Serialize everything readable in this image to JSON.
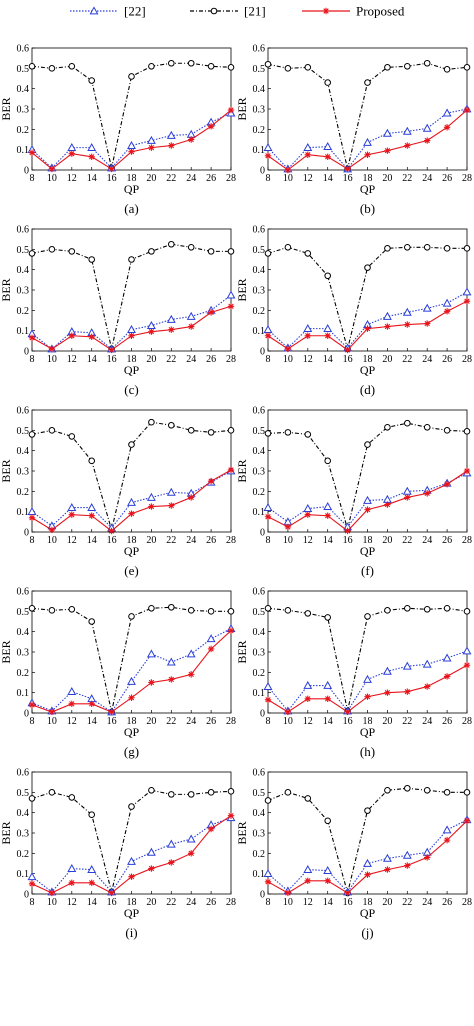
{
  "legend": {
    "items": [
      {
        "label": "[22]",
        "color": "#2b3fd6",
        "marker": "triangle-open",
        "line": "dotted"
      },
      {
        "label": "[21]",
        "color": "#000000",
        "marker": "circle-open",
        "line": "dashdot"
      },
      {
        "label": "Proposed",
        "color": "#e8141c",
        "marker": "asterisk",
        "line": "solid"
      }
    ]
  },
  "chart_data": [
    {
      "type": "line",
      "caption": "(a)",
      "xlabel": "QP",
      "ylabel": "BER",
      "x": [
        8,
        10,
        12,
        14,
        16,
        18,
        20,
        22,
        24,
        26,
        28
      ],
      "ylim": [
        0,
        0.6
      ],
      "yticks": [
        "0",
        "0.1",
        "0.2",
        "0.3",
        "0.4",
        "0.5",
        "0.6"
      ],
      "xticks": [
        "8",
        "10",
        "12",
        "14",
        "16",
        "18",
        "20",
        "22",
        "24",
        "26",
        "28"
      ],
      "series": [
        {
          "name": "[22]",
          "values": [
            0.1,
            0.01,
            0.11,
            0.11,
            0.01,
            0.12,
            0.145,
            0.17,
            0.175,
            0.235,
            0.28
          ]
        },
        {
          "name": "[21]",
          "values": [
            0.51,
            0.5,
            0.51,
            0.44,
            0.01,
            0.46,
            0.51,
            0.525,
            0.525,
            0.51,
            0.505
          ]
        },
        {
          "name": "Proposed",
          "values": [
            0.085,
            0.005,
            0.08,
            0.065,
            0.005,
            0.09,
            0.11,
            0.12,
            0.15,
            0.215,
            0.295
          ]
        }
      ]
    },
    {
      "type": "line",
      "caption": "(b)",
      "xlabel": "QP",
      "ylabel": "BER",
      "x": [
        8,
        10,
        12,
        14,
        16,
        18,
        20,
        22,
        24,
        26,
        28
      ],
      "ylim": [
        0,
        0.6
      ],
      "yticks": [
        "0",
        "0.1",
        "0.2",
        "0.3",
        "0.4",
        "0.5",
        "0.6"
      ],
      "xticks": [
        "8",
        "10",
        "12",
        "14",
        "16",
        "18",
        "20",
        "22",
        "24",
        "26",
        "28"
      ],
      "series": [
        {
          "name": "[22]",
          "values": [
            0.11,
            0.005,
            0.11,
            0.115,
            0.005,
            0.135,
            0.18,
            0.19,
            0.205,
            0.28,
            0.3
          ]
        },
        {
          "name": "[21]",
          "values": [
            0.52,
            0.5,
            0.505,
            0.43,
            0.005,
            0.43,
            0.505,
            0.51,
            0.525,
            0.495,
            0.505
          ]
        },
        {
          "name": "Proposed",
          "values": [
            0.07,
            0.0,
            0.075,
            0.065,
            0.005,
            0.075,
            0.095,
            0.12,
            0.145,
            0.21,
            0.295
          ]
        }
      ]
    },
    {
      "type": "line",
      "caption": "(c)",
      "xlabel": "QP",
      "ylabel": "BER",
      "x": [
        8,
        10,
        12,
        14,
        16,
        18,
        20,
        22,
        24,
        26,
        28
      ],
      "ylim": [
        0,
        0.6
      ],
      "yticks": [
        "0",
        "0.1",
        "0.2",
        "0.3",
        "0.4",
        "0.5",
        "0.6"
      ],
      "xticks": [
        "8",
        "10",
        "12",
        "14",
        "16",
        "18",
        "20",
        "22",
        "24",
        "26",
        "28"
      ],
      "series": [
        {
          "name": "[22]",
          "values": [
            0.085,
            0.01,
            0.095,
            0.09,
            0.01,
            0.105,
            0.125,
            0.155,
            0.17,
            0.2,
            0.275
          ]
        },
        {
          "name": "[21]",
          "values": [
            0.48,
            0.5,
            0.49,
            0.45,
            0.01,
            0.45,
            0.49,
            0.525,
            0.51,
            0.49,
            0.49
          ]
        },
        {
          "name": "Proposed",
          "values": [
            0.065,
            0.01,
            0.075,
            0.07,
            0.005,
            0.075,
            0.095,
            0.105,
            0.12,
            0.19,
            0.22
          ]
        }
      ]
    },
    {
      "type": "line",
      "caption": "(d)",
      "xlabel": "QP",
      "ylabel": "BER",
      "x": [
        8,
        10,
        12,
        14,
        16,
        18,
        20,
        22,
        24,
        26,
        28
      ],
      "ylim": [
        0,
        0.6
      ],
      "yticks": [
        "0",
        "0.1",
        "0.2",
        "0.3",
        "0.4",
        "0.5",
        "0.6"
      ],
      "xticks": [
        "8",
        "10",
        "12",
        "14",
        "16",
        "18",
        "20",
        "22",
        "24",
        "26",
        "28"
      ],
      "series": [
        {
          "name": "[22]",
          "values": [
            0.105,
            0.015,
            0.11,
            0.11,
            0.015,
            0.13,
            0.17,
            0.19,
            0.21,
            0.235,
            0.29
          ]
        },
        {
          "name": "[21]",
          "values": [
            0.48,
            0.51,
            0.48,
            0.37,
            0.01,
            0.41,
            0.505,
            0.51,
            0.51,
            0.505,
            0.505
          ]
        },
        {
          "name": "Proposed",
          "values": [
            0.075,
            0.01,
            0.075,
            0.075,
            0.005,
            0.11,
            0.12,
            0.13,
            0.135,
            0.195,
            0.245
          ]
        }
      ]
    },
    {
      "type": "line",
      "caption": "(e)",
      "xlabel": "QP",
      "ylabel": "BER",
      "x": [
        8,
        10,
        12,
        14,
        16,
        18,
        20,
        22,
        24,
        26,
        28
      ],
      "ylim": [
        0,
        0.6
      ],
      "yticks": [
        "0",
        "0.1",
        "0.2",
        "0.3",
        "0.4",
        "0.5",
        "0.6"
      ],
      "xticks": [
        "8",
        "10",
        "12",
        "14",
        "16",
        "18",
        "20",
        "22",
        "24",
        "26",
        "28"
      ],
      "series": [
        {
          "name": "[22]",
          "values": [
            0.1,
            0.03,
            0.12,
            0.12,
            0.02,
            0.145,
            0.17,
            0.195,
            0.19,
            0.245,
            0.3
          ]
        },
        {
          "name": "[21]",
          "values": [
            0.48,
            0.5,
            0.47,
            0.35,
            0.01,
            0.43,
            0.54,
            0.525,
            0.5,
            0.49,
            0.5
          ]
        },
        {
          "name": "Proposed",
          "values": [
            0.07,
            0.01,
            0.085,
            0.08,
            0.005,
            0.09,
            0.125,
            0.13,
            0.17,
            0.25,
            0.305
          ]
        }
      ]
    },
    {
      "type": "line",
      "caption": "(f)",
      "xlabel": "QP",
      "ylabel": "BER",
      "x": [
        8,
        10,
        12,
        14,
        16,
        18,
        20,
        22,
        24,
        26,
        28
      ],
      "ylim": [
        0,
        0.6
      ],
      "yticks": [
        "0",
        "0.1",
        "0.2",
        "0.3",
        "0.4",
        "0.5",
        "0.6"
      ],
      "xticks": [
        "8",
        "10",
        "12",
        "14",
        "16",
        "18",
        "20",
        "22",
        "24",
        "26",
        "28"
      ],
      "series": [
        {
          "name": "[22]",
          "values": [
            0.12,
            0.05,
            0.115,
            0.125,
            0.025,
            0.155,
            0.16,
            0.2,
            0.205,
            0.24,
            0.29
          ]
        },
        {
          "name": "[21]",
          "values": [
            0.485,
            0.49,
            0.48,
            0.35,
            0.015,
            0.43,
            0.515,
            0.535,
            0.515,
            0.5,
            0.495
          ]
        },
        {
          "name": "Proposed",
          "values": [
            0.075,
            0.025,
            0.085,
            0.08,
            0.005,
            0.11,
            0.135,
            0.17,
            0.19,
            0.235,
            0.3
          ]
        }
      ]
    },
    {
      "type": "line",
      "caption": "(g)",
      "xlabel": "QP",
      "ylabel": "BER",
      "x": [
        8,
        10,
        12,
        14,
        16,
        18,
        20,
        22,
        24,
        26,
        28
      ],
      "ylim": [
        0,
        0.6
      ],
      "yticks": [
        "0",
        "0.1",
        "0.2",
        "0.3",
        "0.4",
        "0.5",
        "0.6"
      ],
      "xticks": [
        "8",
        "10",
        "12",
        "14",
        "16",
        "18",
        "20",
        "22",
        "24",
        "26",
        "28"
      ],
      "series": [
        {
          "name": "[22]",
          "values": [
            0.05,
            0.01,
            0.105,
            0.07,
            0.005,
            0.155,
            0.29,
            0.25,
            0.29,
            0.365,
            0.415
          ]
        },
        {
          "name": "[21]",
          "values": [
            0.515,
            0.505,
            0.51,
            0.45,
            0.005,
            0.475,
            0.515,
            0.52,
            0.505,
            0.5,
            0.5
          ]
        },
        {
          "name": "Proposed",
          "values": [
            0.04,
            0.005,
            0.045,
            0.045,
            0.005,
            0.075,
            0.15,
            0.165,
            0.19,
            0.315,
            0.405
          ]
        }
      ]
    },
    {
      "type": "line",
      "caption": "(h)",
      "xlabel": "QP",
      "ylabel": "BER",
      "x": [
        8,
        10,
        12,
        14,
        16,
        18,
        20,
        22,
        24,
        26,
        28
      ],
      "ylim": [
        0,
        0.6
      ],
      "yticks": [
        "0",
        "0.1",
        "0.2",
        "0.3",
        "0.4",
        "0.5",
        "0.6"
      ],
      "xticks": [
        "8",
        "10",
        "12",
        "14",
        "16",
        "18",
        "20",
        "22",
        "24",
        "26",
        "28"
      ],
      "series": [
        {
          "name": "[22]",
          "values": [
            0.13,
            0.01,
            0.135,
            0.135,
            0.01,
            0.165,
            0.205,
            0.23,
            0.24,
            0.27,
            0.305
          ]
        },
        {
          "name": "[21]",
          "values": [
            0.515,
            0.505,
            0.49,
            0.47,
            0.01,
            0.475,
            0.505,
            0.515,
            0.51,
            0.515,
            0.5
          ]
        },
        {
          "name": "Proposed",
          "values": [
            0.065,
            0.005,
            0.07,
            0.07,
            0.005,
            0.08,
            0.1,
            0.105,
            0.13,
            0.18,
            0.235
          ]
        }
      ]
    },
    {
      "type": "line",
      "caption": "(i)",
      "xlabel": "QP",
      "ylabel": "BER",
      "x": [
        8,
        10,
        12,
        14,
        16,
        18,
        20,
        22,
        24,
        26,
        28
      ],
      "ylim": [
        0,
        0.6
      ],
      "yticks": [
        "0",
        "0.1",
        "0.2",
        "0.3",
        "0.4",
        "0.5",
        "0.6"
      ],
      "xticks": [
        "8",
        "10",
        "12",
        "14",
        "16",
        "18",
        "20",
        "22",
        "24",
        "26",
        "28"
      ],
      "series": [
        {
          "name": "[22]",
          "values": [
            0.085,
            0.01,
            0.125,
            0.12,
            0.01,
            0.16,
            0.205,
            0.245,
            0.27,
            0.34,
            0.375
          ]
        },
        {
          "name": "[21]",
          "values": [
            0.47,
            0.5,
            0.475,
            0.39,
            0.01,
            0.43,
            0.51,
            0.49,
            0.49,
            0.5,
            0.505
          ]
        },
        {
          "name": "Proposed",
          "values": [
            0.05,
            0.005,
            0.055,
            0.055,
            0.005,
            0.085,
            0.125,
            0.155,
            0.2,
            0.32,
            0.385
          ]
        }
      ]
    },
    {
      "type": "line",
      "caption": "(j)",
      "xlabel": "QP",
      "ylabel": "BER",
      "x": [
        8,
        10,
        12,
        14,
        16,
        18,
        20,
        22,
        24,
        26,
        28
      ],
      "ylim": [
        0,
        0.6
      ],
      "yticks": [
        "0",
        "0.1",
        "0.2",
        "0.3",
        "0.4",
        "0.5",
        "0.6"
      ],
      "xticks": [
        "8",
        "10",
        "12",
        "14",
        "16",
        "18",
        "20",
        "22",
        "24",
        "26",
        "28"
      ],
      "series": [
        {
          "name": "[22]",
          "values": [
            0.1,
            0.015,
            0.12,
            0.115,
            0.01,
            0.15,
            0.175,
            0.19,
            0.205,
            0.315,
            0.365
          ]
        },
        {
          "name": "[21]",
          "values": [
            0.46,
            0.5,
            0.47,
            0.36,
            0.005,
            0.41,
            0.51,
            0.52,
            0.51,
            0.5,
            0.5
          ]
        },
        {
          "name": "Proposed",
          "values": [
            0.06,
            0.005,
            0.065,
            0.065,
            0.005,
            0.095,
            0.12,
            0.14,
            0.18,
            0.265,
            0.36
          ]
        }
      ]
    }
  ]
}
